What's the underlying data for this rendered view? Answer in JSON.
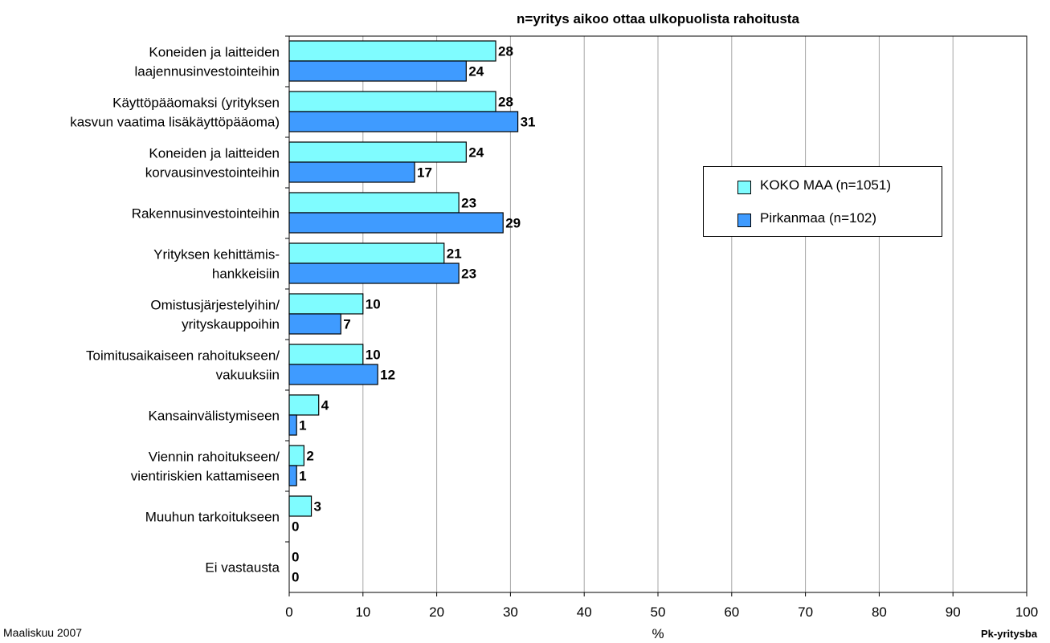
{
  "header": {
    "title": "",
    "subtitle": "n=yritys aikoo ottaa ulkopuolista rahoitusta"
  },
  "footer": {
    "date": "Maaliskuu 2007",
    "source": "Pk-yritysba"
  },
  "colors": {
    "koko_maa": "#7ffcff",
    "pirkanmaa": "#3f9bff",
    "grid": "#a6a6a6",
    "axis": "#000000"
  },
  "chart_data": {
    "type": "bar",
    "orientation": "horizontal",
    "categories": [
      [
        "Koneiden ja laitteiden",
        "laajennusinvestointeihin"
      ],
      [
        "Käyttöpääomaksi (yrityksen",
        "kasvun vaatima lisäkäyttöpääoma)"
      ],
      [
        "Koneiden ja laitteiden",
        "korvausinvestointeihin"
      ],
      [
        "Rakennusinvestointeihin"
      ],
      [
        "Yrityksen kehittämis-",
        "hankkeisiin"
      ],
      [
        "Omistusjärjestelyihin/",
        "yrityskauppoihin"
      ],
      [
        "Toimitusaikaiseen rahoitukseen/",
        "vakuuksiin"
      ],
      [
        "Kansainvälistymiseen"
      ],
      [
        "Viennin rahoitukseen/",
        "vientiriskien kattamiseen"
      ],
      [
        "Muuhun tarkoitukseen"
      ],
      [
        "Ei vastausta"
      ]
    ],
    "series": [
      {
        "name": "KOKO MAA (n=1051)",
        "values": [
          28,
          28,
          24,
          23,
          21,
          10,
          10,
          4,
          2,
          3,
          0
        ]
      },
      {
        "name": "Pirkanmaa (n=102)",
        "values": [
          24,
          31,
          17,
          29,
          23,
          7,
          12,
          1,
          1,
          0,
          0
        ]
      }
    ],
    "xlabel": "%",
    "xlim": [
      0,
      100
    ],
    "xticks": [
      0,
      10,
      20,
      30,
      40,
      50,
      60,
      70,
      80,
      90,
      100
    ],
    "grid": true,
    "legend_position": "right"
  }
}
